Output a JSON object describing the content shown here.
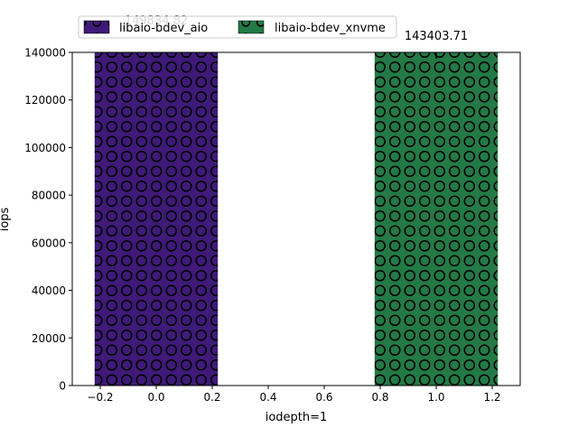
{
  "chart_data": {
    "type": "bar",
    "xlabel": "iodepth=1",
    "ylabel": "iops",
    "xlim": [
      -0.3,
      1.3
    ],
    "ylim": [
      0,
      140000
    ],
    "xticks": [
      "−0.2",
      "0.0",
      "0.2",
      "0.4",
      "0.6",
      "0.8",
      "1.0",
      "1.2"
    ],
    "xtick_values": [
      -0.2,
      0.0,
      0.2,
      0.4,
      0.6,
      0.8,
      1.0,
      1.2
    ],
    "yticks": [
      "0",
      "20000",
      "40000",
      "60000",
      "80000",
      "100000",
      "120000",
      "140000"
    ],
    "ytick_values": [
      0,
      20000,
      40000,
      60000,
      80000,
      100000,
      120000,
      140000
    ],
    "bar_width": 0.44,
    "hatch": "circles",
    "legend_placement": "top-left, above the axes",
    "series": [
      {
        "name": "libaio-bdev_aio",
        "x": 0,
        "value": 149834.82,
        "label": "149834.82",
        "color": "#3f1a79",
        "error": 0
      },
      {
        "name": "libaio-bdev_xnvme",
        "x": 1,
        "value": 143403.71,
        "label": "143403.71",
        "color": "#237a46",
        "error": 6000
      }
    ]
  }
}
